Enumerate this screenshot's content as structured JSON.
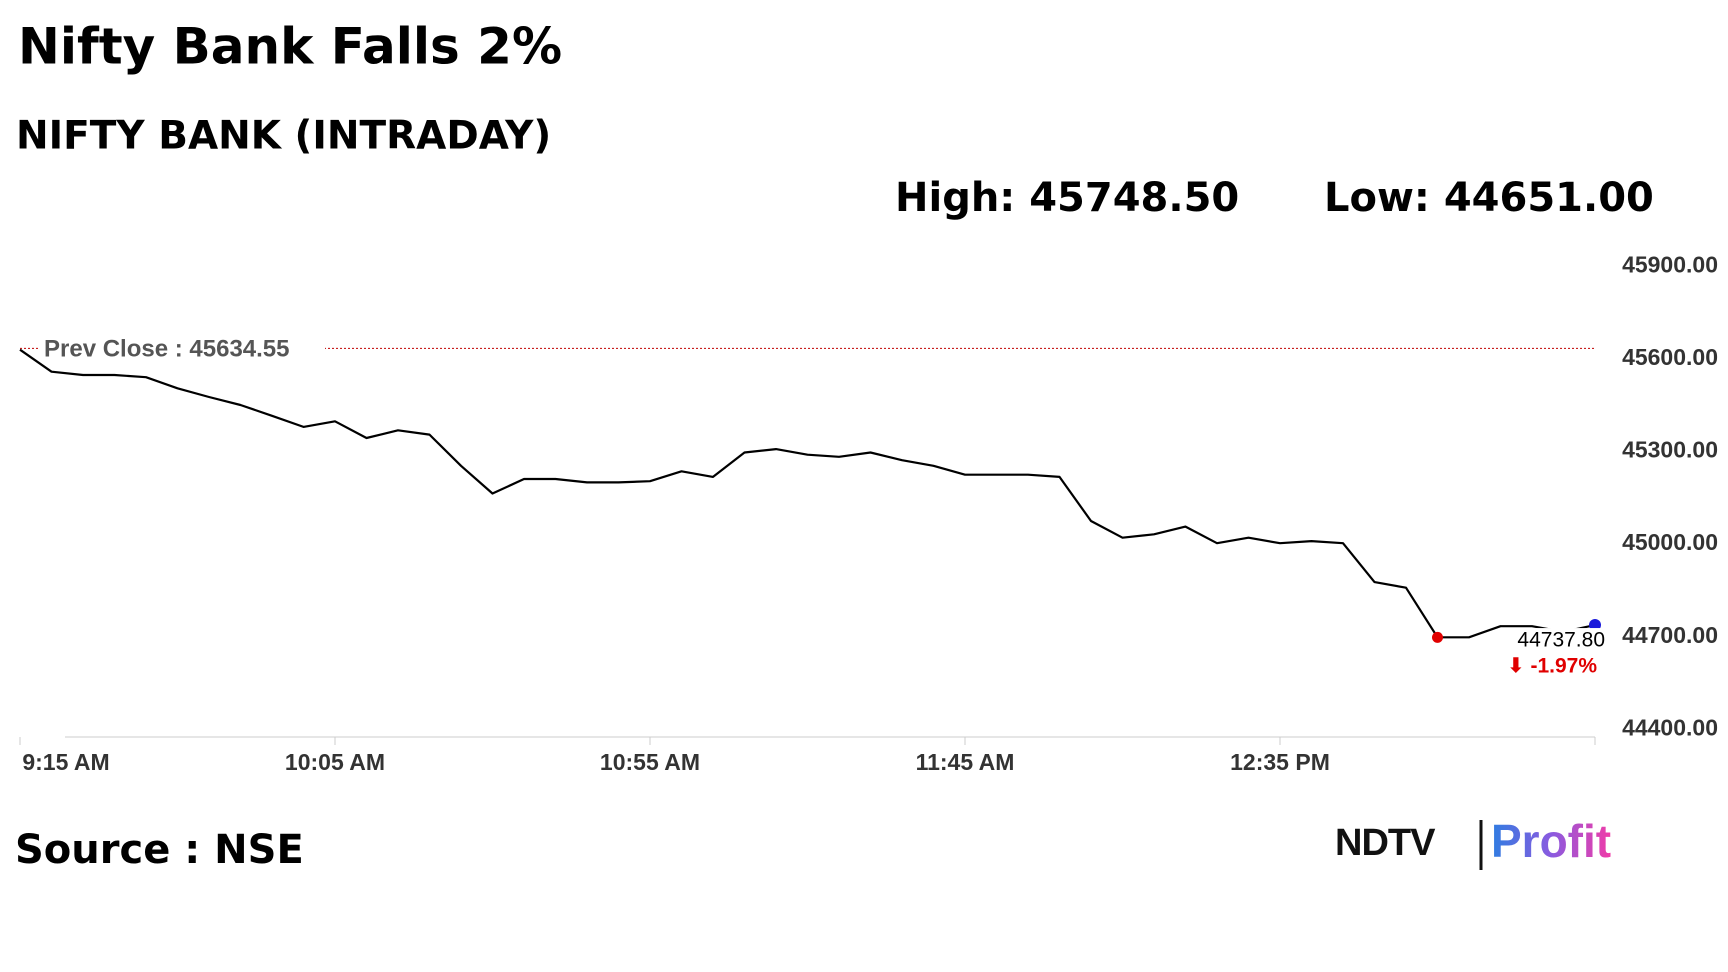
{
  "chart_data": {
    "type": "line",
    "title": "Nifty Bank Falls 2%",
    "subtitle": "NIFTY BANK (INTRADAY)",
    "high_label": "High: 45748.50",
    "low_label": "Low: 44651.00",
    "prev_close": {
      "value": 45634.55,
      "label": "Prev Close : 45634.55"
    },
    "last_value": {
      "value": 44737.8,
      "label": "44737.80"
    },
    "change_label": "⬇ -1.97%",
    "source": "Source : NSE",
    "brand": [
      "NDTV",
      "Profit"
    ],
    "x": [
      "9:15",
      "9:20",
      "9:25",
      "9:30",
      "9:35",
      "9:40",
      "9:45",
      "9:50",
      "9:55",
      "10:00",
      "10:05",
      "10:10",
      "10:15",
      "10:20",
      "10:25",
      "10:30",
      "10:35",
      "10:40",
      "10:45",
      "10:50",
      "10:55",
      "11:00",
      "11:05",
      "11:10",
      "11:15",
      "11:20",
      "11:25",
      "11:30",
      "11:35",
      "11:40",
      "11:45",
      "11:50",
      "11:55",
      "12:00",
      "12:05",
      "12:10",
      "12:15",
      "12:20",
      "12:25",
      "12:30",
      "12:35",
      "12:40",
      "12:45",
      "12:50",
      "12:55",
      "13:00",
      "13:05",
      "13:10",
      "13:15",
      "13:20",
      "13:25"
    ],
    "series": [
      {
        "name": "NIFTY BANK",
        "color": "#000000",
        "values": [
          45630,
          45559,
          45548,
          45548,
          45541,
          45505,
          45477,
          45451,
          45416,
          45380,
          45398,
          45344,
          45369,
          45355,
          45254,
          45164,
          45211,
          45211,
          45200,
          45200,
          45204,
          45236,
          45218,
          45297,
          45308,
          45290,
          45283,
          45297,
          45272,
          45254,
          45225,
          45225,
          45225,
          45218,
          45075,
          45021,
          45032,
          45057,
          45003,
          45021,
          45003,
          45010,
          45003,
          44877,
          44859,
          44698,
          44698,
          44734,
          44734,
          44716,
          44737.8
        ]
      }
    ],
    "xlim": [
      "9:15",
      "13:25"
    ],
    "xticks": [
      {
        "value": "9:15",
        "label": "9:15 AM"
      },
      {
        "value": "10:05",
        "label": "10:05 AM"
      },
      {
        "value": "10:55",
        "label": "10:55 AM"
      },
      {
        "value": "11:45",
        "label": "11:45 AM"
      },
      {
        "value": "12:35",
        "label": "12:35 PM"
      }
    ],
    "ylim": [
      44375,
      45950
    ],
    "yticks": [
      {
        "value": 45900,
        "label": "45900.00"
      },
      {
        "value": 45600,
        "label": "45600.00"
      },
      {
        "value": 45300,
        "label": "45300.00"
      },
      {
        "value": 45000,
        "label": "45000.00"
      },
      {
        "value": 44700,
        "label": "44700.00"
      },
      {
        "value": 44400,
        "label": "44400.00"
      }
    ],
    "prev_close_color": "#c00000",
    "low_color": "#e00000",
    "last_color": "#1a1adb"
  }
}
